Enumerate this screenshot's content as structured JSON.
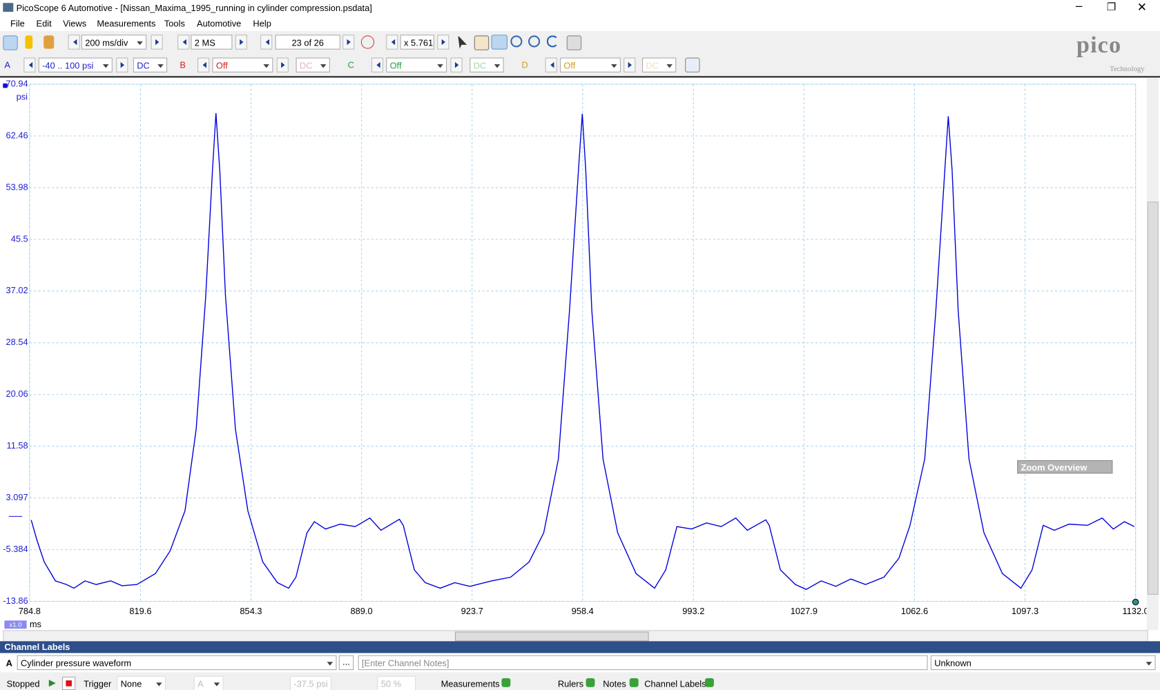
{
  "window": {
    "title": "PicoScope 6 Automotive - [Nissan_Maxima_1995_running in cylinder compression.psdata]"
  },
  "menu": [
    "File",
    "Edit",
    "Views",
    "Measurements",
    "Tools",
    "Automotive",
    "Help"
  ],
  "toolbar": {
    "timebase": "200 ms/div",
    "samples": "2 MS",
    "buffer": "23 of 26",
    "zoom": "x 5.761"
  },
  "logo": {
    "name": "pico",
    "sub": "Technology"
  },
  "channels": [
    {
      "label": "A",
      "range": "-40 .. 100 psi",
      "coupling": "DC"
    },
    {
      "label": "B",
      "range": "Off",
      "coupling": "DC"
    },
    {
      "label": "C",
      "range": "Off",
      "coupling": "DC"
    },
    {
      "label": "D",
      "range": "Off",
      "coupling": "DC"
    }
  ],
  "chart_data": {
    "type": "line",
    "y_unit": "psi",
    "x_unit": "ms",
    "zoom_badge": "x1.0",
    "xlim": [
      784.8,
      1132
    ],
    "ylim": [
      -13.86,
      70.94
    ],
    "grid": true,
    "xticks": [
      784.8,
      819.6,
      854.3,
      {
        "value": 889,
        "label": "889.0"
      },
      923.7,
      958.4,
      993.2,
      1027.9,
      1062.6,
      1097.3,
      {
        "value": 1132,
        "label": "1132.0"
      }
    ],
    "yticks": [
      70.94,
      62.46,
      53.98,
      45.5,
      37.02,
      28.54,
      20.06,
      11.58,
      3.097,
      -5.384,
      -13.86
    ],
    "x": [
      785.3,
      787.1,
      789.4,
      792.9,
      796.4,
      798.7,
      802.2,
      805.7,
      810.3,
      813.8,
      818.5,
      824.3,
      828.9,
      833.6,
      837.1,
      840.1,
      842.2,
      843.3,
      844.5,
      846.3,
      849.4,
      853.3,
      858.0,
      862.6,
      866.1,
      868.4,
      871.9,
      874.2,
      877.7,
      882.3,
      887.0,
      891.6,
      895.1,
      900.9,
      902.1,
      905.6,
      909.0,
      913.7,
      918.3,
      923.0,
      929.9,
      935.8,
      941.6,
      946.2,
      950.8,
      954.3,
      957.1,
      958.3,
      959.4,
      961.3,
      964.8,
      969.4,
      975.2,
      981.0,
      984.5,
      988.0,
      992.6,
      997.3,
      1001.9,
      1006.5,
      1010.1,
      1015.9,
      1017.0,
      1020.5,
      1025.2,
      1028.6,
      1033.3,
      1037.9,
      1042.6,
      1047.2,
      1053.0,
      1057.7,
      1061.2,
      1065.8,
      1069.3,
      1072.1,
      1073.2,
      1074.4,
      1076.3,
      1079.7,
      1084.4,
      1090.2,
      1096.0,
      1099.5,
      1103.0,
      1106.5,
      1111.1,
      1116.9,
      1121.5,
      1125.0,
      1128.5,
      1131.6
    ],
    "series": [
      {
        "color": "#0000dd",
        "values": [
          -0.53,
          -3.8,
          -7.4,
          -10.5,
          -11.1,
          -11.7,
          -10.5,
          -11.1,
          -10.5,
          -11.3,
          -11.1,
          -9.3,
          -5.6,
          1.0,
          14.4,
          36.2,
          56.8,
          66.2,
          56.8,
          36.2,
          14.4,
          1.0,
          -7.4,
          -10.8,
          -11.7,
          -9.9,
          -2.6,
          -0.8,
          -2.0,
          -1.2,
          -1.6,
          -0.2,
          -2.2,
          -0.4,
          -1.4,
          -8.7,
          -10.8,
          -11.7,
          -10.8,
          -11.4,
          -10.5,
          -9.9,
          -7.4,
          -2.6,
          9.5,
          33.8,
          56.8,
          66.1,
          56.8,
          33.8,
          9.5,
          -2.6,
          -9.3,
          -11.7,
          -8.7,
          -1.6,
          -2.0,
          -1.0,
          -1.6,
          -0.2,
          -2.2,
          -0.5,
          -1.4,
          -8.7,
          -11.1,
          -11.9,
          -10.5,
          -11.4,
          -10.2,
          -11.1,
          -9.9,
          -6.8,
          -1.4,
          9.5,
          33.8,
          56.8,
          65.7,
          56.8,
          33.8,
          9.5,
          -2.6,
          -9.3,
          -11.7,
          -8.7,
          -1.4,
          -2.2,
          -1.2,
          -1.4,
          -0.2,
          -2.0,
          -0.8,
          -1.6
        ]
      }
    ]
  },
  "zoom_overview": {
    "title": "Zoom Overview"
  },
  "channel_labels": {
    "title": "Channel Labels",
    "channel": "A",
    "label": "Cylinder pressure waveform",
    "more": "...",
    "notes": "[Enter Channel Notes]",
    "type": "Unknown"
  },
  "status": {
    "state": "Stopped",
    "trigger": "Trigger",
    "trigger_mode": "None",
    "trigger_channel": "A",
    "threshold": "-37.5 psi",
    "pre_trigger": "50 %",
    "measurements": "Measurements",
    "rulers": "Rulers",
    "notes": "Notes",
    "channel_labels": "Channel Labels"
  }
}
